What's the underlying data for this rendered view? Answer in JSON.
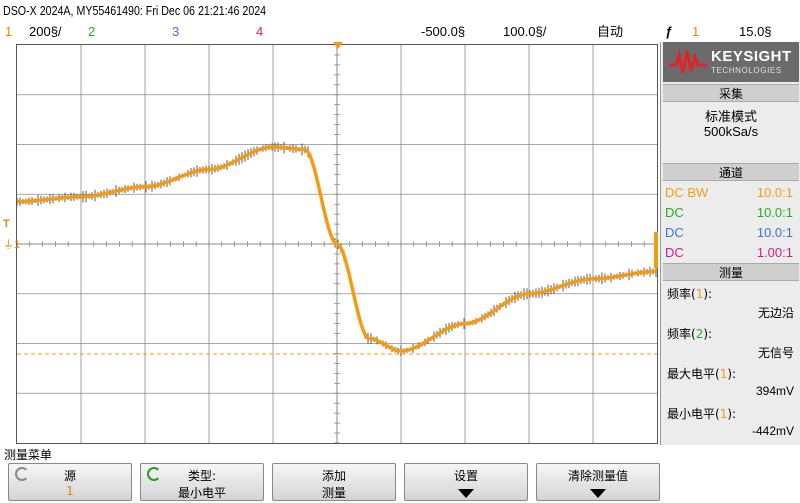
{
  "title": "DSO-X 2024A, MY55461490: Fri Dec 06 21:21:46 2024",
  "scale_row": {
    "ch1_num": "1",
    "ch1_scale": "200§/",
    "ch2_num": "2",
    "ch3_num": "3",
    "ch4_num": "4",
    "time_delay": "-500.0§",
    "time_scale": "100.0§/",
    "trigger_mode": "自动",
    "trigger_icon": "ƒ",
    "trigger_source": "1",
    "trigger_level": "15.0§"
  },
  "markers": {
    "trigger_level": "T",
    "ground": "1"
  },
  "panel": {
    "logo": "KEYSIGHT",
    "logo_sub": "TECHNOLOGIES",
    "acquire_header": "采集",
    "acquire_mode": "标准模式",
    "sample_rate": "500kSa/s",
    "channels_header": "通道",
    "channels": [
      {
        "coupling": "DC BW",
        "probe": "10.0:1",
        "color": "#f39c12"
      },
      {
        "coupling": "DC",
        "probe": "10.0:1",
        "color": "#22b022"
      },
      {
        "coupling": "DC",
        "probe": "10.0:1",
        "color": "#3b73d6"
      },
      {
        "coupling": "DC",
        "probe": "1.00:1",
        "color": "#d81b8a"
      }
    ],
    "measure_header": "测量",
    "measurements": [
      {
        "label": "频率",
        "src": "1",
        "src_color": "#f39c12",
        "value": "无边沿"
      },
      {
        "label": "频率",
        "src": "2",
        "src_color": "#22b022",
        "value": "无信号"
      },
      {
        "label": "最大电平",
        "src": "1",
        "src_color": "#f39c12",
        "value": "394mV"
      },
      {
        "label": "最小电平",
        "src": "1",
        "src_color": "#f39c12",
        "value": "-442mV"
      }
    ]
  },
  "menu": {
    "title": "测量菜单",
    "keys": [
      {
        "top": "源",
        "bottom": "1"
      },
      {
        "top": "类型:",
        "bottom": "最小电平"
      },
      {
        "top": "添加",
        "bottom": "测量"
      },
      {
        "top": "设置",
        "bottom": ""
      },
      {
        "top": "清除测量值",
        "bottom": ""
      }
    ]
  },
  "colors": {
    "ch1": "#f39c12",
    "ch2": "#22b022",
    "ch3": "#3b73d6",
    "ch4": "#d81b8a",
    "grid": "#8a8a8a"
  },
  "waveform": {
    "channel": "1",
    "units": "V",
    "volts_per_div": 0.2,
    "time_per_div_us": 100,
    "points": [
      [
        -500,
        0.17
      ],
      [
        -400,
        0.19
      ],
      [
        -300,
        0.23
      ],
      [
        -200,
        0.3
      ],
      [
        -100,
        0.39
      ],
      [
        -50,
        0.38
      ],
      [
        0,
        0.0
      ],
      [
        50,
        -0.38
      ],
      [
        100,
        -0.43
      ],
      [
        200,
        -0.32
      ],
      [
        300,
        -0.2
      ],
      [
        400,
        -0.14
      ],
      [
        500,
        -0.11
      ]
    ],
    "min_level_cursor": -0.442
  }
}
